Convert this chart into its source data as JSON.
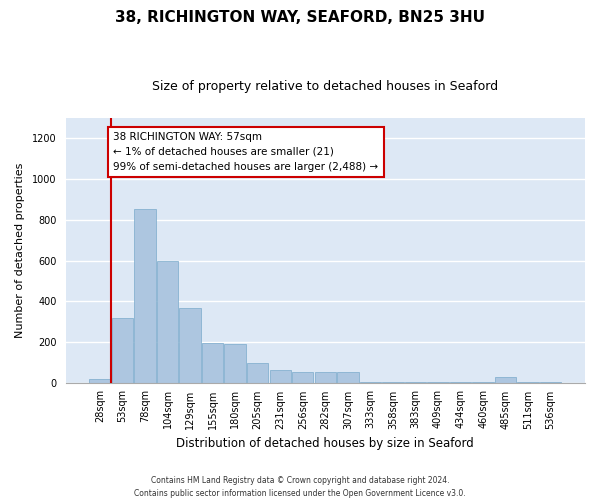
{
  "title": "38, RICHINGTON WAY, SEAFORD, BN25 3HU",
  "subtitle": "Size of property relative to detached houses in Seaford",
  "xlabel": "Distribution of detached houses by size in Seaford",
  "ylabel": "Number of detached properties",
  "bin_labels": [
    "28sqm",
    "53sqm",
    "78sqm",
    "104sqm",
    "129sqm",
    "155sqm",
    "180sqm",
    "205sqm",
    "231sqm",
    "256sqm",
    "282sqm",
    "307sqm",
    "333sqm",
    "358sqm",
    "383sqm",
    "409sqm",
    "434sqm",
    "460sqm",
    "485sqm",
    "511sqm",
    "536sqm"
  ],
  "bar_values": [
    21,
    320,
    855,
    600,
    370,
    195,
    190,
    100,
    65,
    55,
    55,
    55,
    5,
    5,
    5,
    5,
    5,
    5,
    30,
    5,
    5
  ],
  "bar_color": "#adc6e0",
  "bar_edge_color": "#7aaacb",
  "vline_pos": 0.5,
  "vline_color": "#cc0000",
  "ylim_max": 1300,
  "yticks": [
    0,
    200,
    400,
    600,
    800,
    1000,
    1200
  ],
  "annotation_title": "38 RICHINGTON WAY: 57sqm",
  "annotation_line2": "← 1% of detached houses are smaller (21)",
  "annotation_line3": "99% of semi-detached houses are larger (2,488) →",
  "annotation_box_facecolor": "#ffffff",
  "annotation_box_edgecolor": "#cc0000",
  "footer_line1": "Contains HM Land Registry data © Crown copyright and database right 2024.",
  "footer_line2": "Contains public sector information licensed under the Open Government Licence v3.0.",
  "bg_color": "#dde8f5",
  "grid_color": "#ffffff",
  "title_fontsize": 11,
  "subtitle_fontsize": 9,
  "ylabel_fontsize": 8,
  "xlabel_fontsize": 8.5,
  "tick_fontsize": 7,
  "annotation_fontsize": 7.5,
  "footer_fontsize": 5.5
}
